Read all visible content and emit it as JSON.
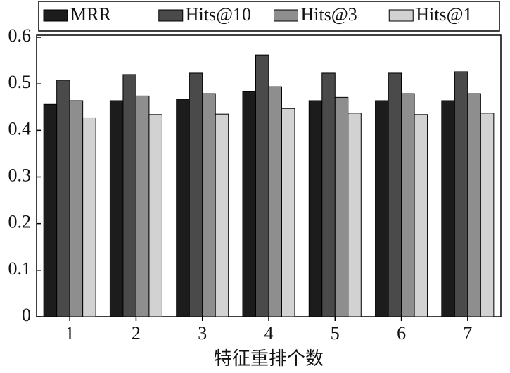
{
  "chart_data": {
    "type": "bar",
    "x_label": "特征重排个数",
    "categories": [
      "1",
      "2",
      "3",
      "4",
      "5",
      "6",
      "7"
    ],
    "series": [
      {
        "name": "MRR",
        "color": "#1c1c1c",
        "values": [
          0.456,
          0.464,
          0.467,
          0.483,
          0.464,
          0.464,
          0.464
        ]
      },
      {
        "name": "Hits@10",
        "color": "#4a4a4a",
        "values": [
          0.508,
          0.52,
          0.523,
          0.562,
          0.523,
          0.523,
          0.526
        ]
      },
      {
        "name": "Hits@3",
        "color": "#8e8e8e",
        "values": [
          0.464,
          0.474,
          0.479,
          0.494,
          0.471,
          0.479,
          0.479
        ]
      },
      {
        "name": "Hits@1",
        "color": "#d2d2d2",
        "values": [
          0.427,
          0.434,
          0.435,
          0.447,
          0.437,
          0.434,
          0.437
        ]
      }
    ],
    "ylim": [
      0,
      0.6
    ],
    "yticks": [
      0,
      0.1,
      0.2,
      0.3,
      0.4,
      0.5,
      0.6
    ],
    "grid": false,
    "legend": "top"
  }
}
